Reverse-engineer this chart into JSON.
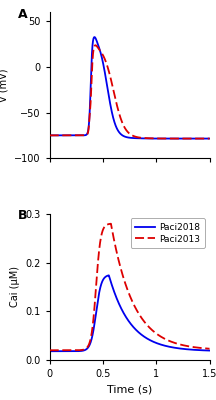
{
  "xlim": [
    0,
    1.5
  ],
  "panel_A": {
    "label": "A",
    "ylabel": "V (mV)",
    "ylim": [
      -100,
      60
    ],
    "yticks": [
      -100,
      -50,
      0,
      50
    ],
    "blue_color": "#0000ee",
    "red_color": "#dd0000"
  },
  "panel_B": {
    "label": "B",
    "ylabel": "Cai (μM)",
    "ylim": [
      0,
      0.3
    ],
    "yticks": [
      0.0,
      0.1,
      0.2,
      0.3
    ],
    "blue_color": "#0000ee",
    "red_color": "#dd0000",
    "legend_labels": [
      "Paci2018",
      "Paci2013"
    ]
  },
  "xlabel": "Time (s)",
  "xticks": [
    0,
    0.5,
    1.0,
    1.5
  ],
  "background_color": "#ffffff"
}
